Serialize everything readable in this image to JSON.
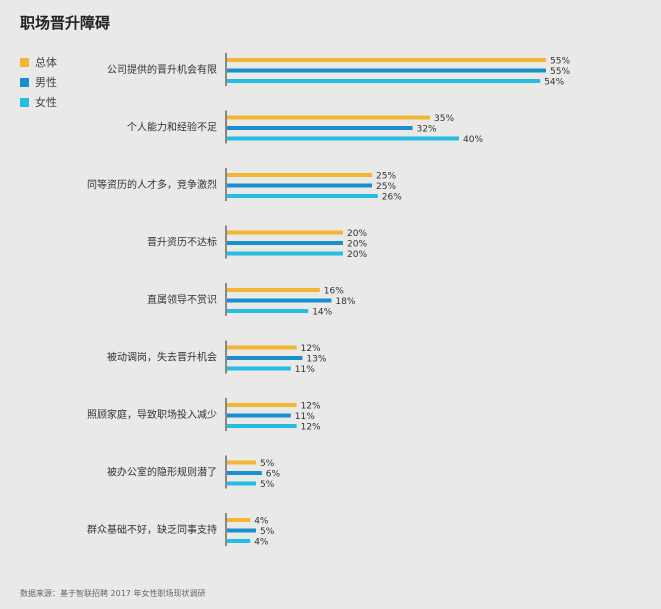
{
  "title": "职场晋升障碍",
  "source": "数据来源：基于智联招聘 2017 年女性职场现状调研",
  "colors": {
    "总体": "#f2b534",
    "男性": "#1a8fd0",
    "女性": "#27bde3",
    "axis": "#888888"
  },
  "chart_data": {
    "type": "bar",
    "orientation": "horizontal",
    "categories": [
      "公司提供的晋升机会有限",
      "个人能力和经验不足",
      "同等资历的人才多，竞争激烈",
      "晋升资历不达标",
      "直属领导不赏识",
      "被动调岗，失去晋升机会",
      "照顾家庭，导致职场投入减少",
      "被办公室的隐形规则潜了",
      "群众基础不好，缺乏同事支持"
    ],
    "series": [
      {
        "name": "总体",
        "values": [
          55,
          35,
          25,
          20,
          16,
          12,
          12,
          5,
          4
        ]
      },
      {
        "name": "男性",
        "values": [
          55,
          32,
          25,
          20,
          18,
          13,
          11,
          6,
          5
        ]
      },
      {
        "name": "女性",
        "values": [
          54,
          40,
          26,
          20,
          14,
          11,
          12,
          5,
          4
        ]
      }
    ],
    "value_suffix": "%",
    "xlim": [
      0,
      60
    ],
    "grid": false,
    "legend_position": "top-left"
  }
}
